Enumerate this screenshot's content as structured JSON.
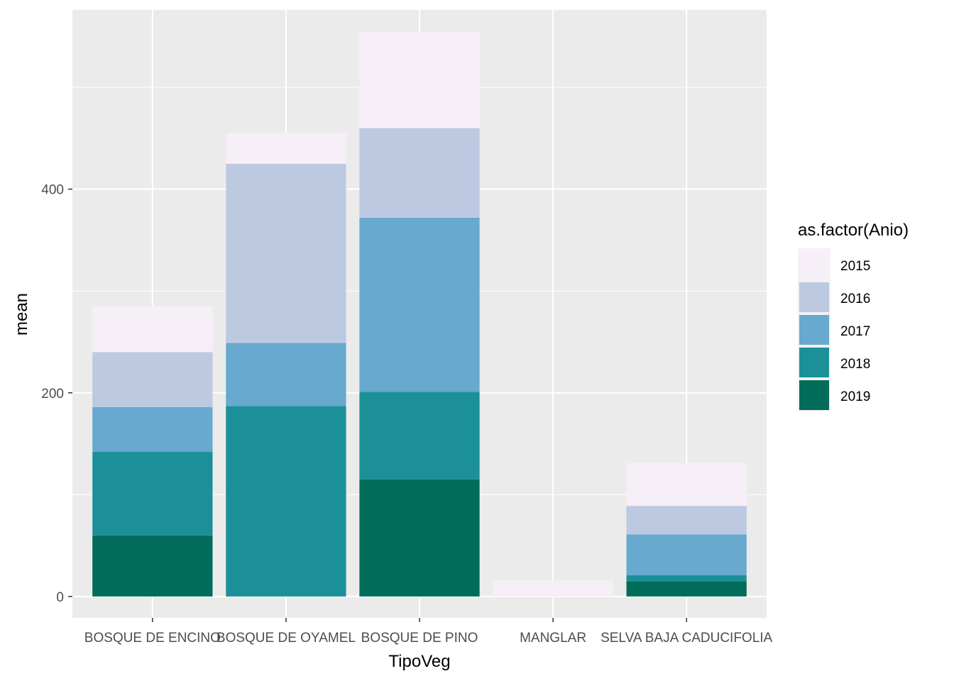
{
  "chart_data": {
    "type": "bar",
    "stacked": true,
    "xlabel": "TipoVeg",
    "ylabel": "mean",
    "ylim": [
      -21,
      576
    ],
    "yticks": [
      0,
      200,
      400
    ],
    "grid": true,
    "legend_title": "as.factor(Anio)",
    "legend_position": "right",
    "categories": [
      "BOSQUE DE ENCINO",
      "BOSQUE DE OYAMEL",
      "BOSQUE DE PINO",
      "MANGLAR",
      "SELVA BAJA CADUCIFOLIA"
    ],
    "series": [
      {
        "name": "2019",
        "color": "#016c59",
        "values": [
          60,
          0,
          115,
          0,
          15
        ]
      },
      {
        "name": "2018",
        "color": "#1c9099",
        "values": [
          82,
          187,
          86,
          0,
          6
        ]
      },
      {
        "name": "2017",
        "color": "#67a9cf",
        "values": [
          44,
          62,
          171,
          0,
          40
        ]
      },
      {
        "name": "2016",
        "color": "#bdc9e1",
        "values": [
          54,
          176,
          88,
          0,
          28
        ]
      },
      {
        "name": "2015",
        "color": "#f6eff7",
        "values": [
          45,
          30,
          94,
          16,
          42
        ]
      }
    ],
    "legend_order": [
      "2015",
      "2016",
      "2017",
      "2018",
      "2019"
    ]
  }
}
